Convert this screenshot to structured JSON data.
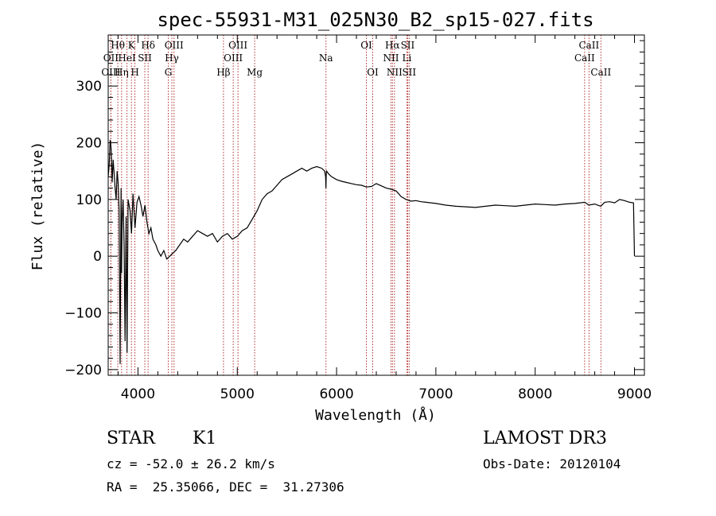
{
  "chart_data": {
    "type": "line",
    "title": "spec-55931-M31_025N30_B2_sp15-027.fits",
    "xlabel": "Wavelength (Å)",
    "ylabel": "Flux (relative)",
    "xlim": [
      3700,
      9100
    ],
    "ylim": [
      -210,
      390
    ],
    "xticks": [
      4000,
      5000,
      6000,
      7000,
      8000,
      9000
    ],
    "yticks": [
      -200,
      -100,
      0,
      100,
      200,
      300
    ],
    "xtick_labels": [
      "4000",
      "5000",
      "6000",
      "7000",
      "8000",
      "9000"
    ],
    "ytick_labels": [
      "-200",
      "-100",
      "0",
      "100",
      "200",
      "300"
    ],
    "series": [
      {
        "name": "spectrum",
        "x": [
          3700,
          3710,
          3720,
          3730,
          3740,
          3750,
          3760,
          3770,
          3780,
          3790,
          3800,
          3810,
          3820,
          3830,
          3835,
          3840,
          3850,
          3860,
          3870,
          3880,
          3890,
          3900,
          3920,
          3935,
          3950,
          3970,
          3990,
          4010,
          4030,
          4050,
          4070,
          4090,
          4110,
          4130,
          4150,
          4180,
          4200,
          4230,
          4260,
          4290,
          4320,
          4350,
          4380,
          4420,
          4460,
          4500,
          4550,
          4600,
          4650,
          4700,
          4750,
          4800,
          4850,
          4900,
          4950,
          5000,
          5050,
          5100,
          5150,
          5200,
          5250,
          5300,
          5350,
          5400,
          5450,
          5500,
          5550,
          5600,
          5650,
          5700,
          5750,
          5800,
          5850,
          5880,
          5890,
          5893,
          5896,
          5900,
          5920,
          5950,
          6000,
          6050,
          6100,
          6150,
          6200,
          6250,
          6300,
          6350,
          6400,
          6450,
          6500,
          6550,
          6600,
          6650,
          6700,
          6750,
          6800,
          6850,
          6900,
          6950,
          7000,
          7100,
          7200,
          7300,
          7400,
          7500,
          7600,
          7700,
          7800,
          7900,
          8000,
          8100,
          8200,
          8300,
          8400,
          8500,
          8540,
          8600,
          8660,
          8700,
          8750,
          8800,
          8850,
          8900,
          8950,
          8990,
          9000
        ],
        "y": [
          140,
          160,
          205,
          190,
          130,
          170,
          145,
          120,
          100,
          150,
          130,
          80,
          -190,
          120,
          -30,
          60,
          100,
          20,
          -150,
          70,
          -170,
          100,
          80,
          40,
          110,
          50,
          95,
          105,
          90,
          70,
          90,
          60,
          40,
          50,
          30,
          20,
          10,
          0,
          10,
          -5,
          0,
          5,
          10,
          20,
          30,
          25,
          35,
          45,
          40,
          35,
          40,
          25,
          35,
          40,
          30,
          35,
          45,
          50,
          65,
          80,
          100,
          110,
          115,
          125,
          135,
          140,
          145,
          150,
          155,
          150,
          155,
          158,
          155,
          150,
          140,
          120,
          145,
          150,
          145,
          140,
          135,
          132,
          130,
          128,
          126,
          125,
          122,
          123,
          128,
          124,
          120,
          118,
          115,
          105,
          100,
          97,
          98,
          96,
          95,
          94,
          93,
          90,
          88,
          87,
          86,
          88,
          90,
          89,
          88,
          90,
          92,
          91,
          90,
          92,
          93,
          95,
          90,
          92,
          88,
          95,
          96,
          94,
          100,
          98,
          95,
          94,
          0
        ]
      }
    ],
    "line_markers": [
      {
        "label": "Hθ",
        "wavelength": 3797,
        "row": 0
      },
      {
        "label": "OII",
        "wavelength": 3727,
        "row": 1
      },
      {
        "label": "OIII",
        "wavelength": 3727,
        "row": 2
      },
      {
        "label": "K",
        "wavelength": 3934,
        "row": 0
      },
      {
        "label": "HeI",
        "wavelength": 3889,
        "row": 1
      },
      {
        "label": "Hη",
        "wavelength": 3835,
        "row": 2
      },
      {
        "label": "SII",
        "wavelength": 4069,
        "row": 1
      },
      {
        "label": "H",
        "wavelength": 3969,
        "row": 2
      },
      {
        "label": "Hδ",
        "wavelength": 4102,
        "row": 0
      },
      {
        "label": "OIII",
        "wavelength": 4363,
        "row": 0
      },
      {
        "label": "Hγ",
        "wavelength": 4341,
        "row": 1
      },
      {
        "label": "G",
        "wavelength": 4305,
        "row": 2
      },
      {
        "label": "OIII",
        "wavelength": 5007,
        "row": 0
      },
      {
        "label": "OIII",
        "wavelength": 4959,
        "row": 1
      },
      {
        "label": "Hβ",
        "wavelength": 4861,
        "row": 2
      },
      {
        "label": "Mg",
        "wavelength": 5175,
        "row": 2
      },
      {
        "label": "Na",
        "wavelength": 5893,
        "row": 1
      },
      {
        "label": "OI",
        "wavelength": 6300,
        "row": 0
      },
      {
        "label": "OI",
        "wavelength": 6364,
        "row": 2
      },
      {
        "label": "Hα",
        "wavelength": 6563,
        "row": 0
      },
      {
        "label": "SII",
        "wavelength": 6716,
        "row": 0
      },
      {
        "label": "NII",
        "wavelength": 6548,
        "row": 1
      },
      {
        "label": "Li",
        "wavelength": 6708,
        "row": 1
      },
      {
        "label": "NII",
        "wavelength": 6583,
        "row": 2
      },
      {
        "label": "SII",
        "wavelength": 6731,
        "row": 2
      },
      {
        "label": "CaII",
        "wavelength": 8542,
        "row": 0
      },
      {
        "label": "CaII",
        "wavelength": 8498,
        "row": 1
      },
      {
        "label": "CaII",
        "wavelength": 8662,
        "row": 2
      }
    ],
    "colors": {
      "spectrum": "#000000",
      "markers": "#b03030",
      "axes": "#000000"
    }
  },
  "info": {
    "class": "STAR",
    "subclass": "K1",
    "survey": "LAMOST DR3",
    "cz": "cz = -52.0 ± 26.2 km/s",
    "obs_date": "Obs-Date: 20120104",
    "radec": "RA =  25.35066, DEC =  31.27306"
  }
}
